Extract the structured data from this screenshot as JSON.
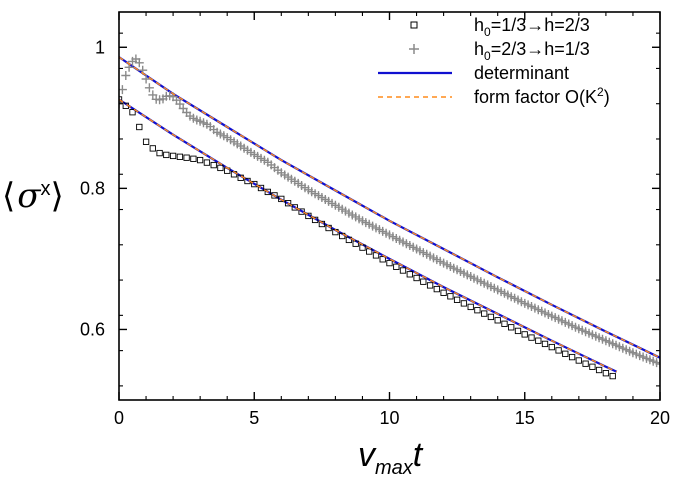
{
  "chart_data": {
    "type": "line",
    "title": "",
    "xlabel": {
      "main": "v",
      "sub": "max",
      "var": "t"
    },
    "ylabel": {
      "open": "⟨",
      "sym": "σ",
      "sup": "x",
      "close": "⟩"
    },
    "xlim": [
      0,
      20
    ],
    "ylim": [
      0.5,
      1.05
    ],
    "xticks": [
      0,
      5,
      10,
      15,
      20
    ],
    "xtick_labels": [
      "0",
      "5",
      "10",
      "15",
      "20"
    ],
    "yticks": [
      0.6,
      0.8,
      1.0
    ],
    "ytick_labels": [
      "0.6",
      "0.8",
      "1"
    ],
    "grid": false,
    "legend_position": "top-right",
    "legend": [
      {
        "id": "squares",
        "parts": [
          "h",
          "0",
          "=1/3→h=2/3"
        ],
        "marker": "square",
        "color": "#000000"
      },
      {
        "id": "plus",
        "parts": [
          "h",
          "0",
          "=2/3→h=1/3"
        ],
        "marker": "plus",
        "color": "#808080"
      },
      {
        "id": "det",
        "label": "determinant",
        "line": "solid",
        "color": "#1010d0"
      },
      {
        "id": "ff",
        "label": "form factor O(K",
        "sup": "2",
        "suffix": ")",
        "line": "dashed",
        "color": "#ff8c1a"
      }
    ],
    "series": [
      {
        "name": "h0=1/3→h=2/3",
        "marker": "square",
        "x": [
          0.0,
          0.5,
          1.0,
          1.4,
          1.8,
          2.2,
          2.6,
          3.0,
          3.5,
          4.0,
          4.5,
          5.0,
          5.5,
          6.0,
          7.0,
          8.0,
          9.0,
          10.0,
          11.0,
          12.0,
          13.0,
          14.0,
          15.0,
          16.0,
          17.0,
          18.0,
          18.3
        ],
        "y": [
          0.926,
          0.908,
          0.866,
          0.851,
          0.847,
          0.845,
          0.843,
          0.84,
          0.833,
          0.825,
          0.815,
          0.806,
          0.795,
          0.785,
          0.761,
          0.738,
          0.716,
          0.694,
          0.673,
          0.652,
          0.632,
          0.613,
          0.593,
          0.575,
          0.556,
          0.538,
          0.533
        ]
      },
      {
        "name": "h0=2/3→h=1/3",
        "marker": "plus",
        "x": [
          0.0,
          0.1,
          0.2,
          0.35,
          0.5,
          0.65,
          0.8,
          1.0,
          1.2,
          1.4,
          1.6,
          1.8,
          2.0,
          2.2,
          2.4,
          2.6,
          2.8,
          3.0,
          3.3,
          3.6,
          4.0,
          4.5,
          5.0,
          5.5,
          6.0,
          7.0,
          8.0,
          9.0,
          10.0,
          11.0,
          12.0,
          13.0,
          14.0,
          15.0,
          16.0,
          17.0,
          18.0,
          19.0,
          20.0
        ],
        "y": [
          0.92,
          0.935,
          0.955,
          0.97,
          0.98,
          0.984,
          0.975,
          0.955,
          0.935,
          0.925,
          0.926,
          0.932,
          0.93,
          0.922,
          0.912,
          0.903,
          0.898,
          0.895,
          0.89,
          0.88,
          0.872,
          0.86,
          0.848,
          0.837,
          0.822,
          0.798,
          0.776,
          0.754,
          0.734,
          0.714,
          0.694,
          0.675,
          0.656,
          0.637,
          0.619,
          0.601,
          0.584,
          0.567,
          0.551
        ]
      },
      {
        "name": "determinant (upper)",
        "line": "solid",
        "x": [
          0,
          2,
          4,
          6,
          8,
          10,
          12,
          14,
          16,
          18,
          20
        ],
        "y": [
          0.986,
          0.934,
          0.887,
          0.84,
          0.797,
          0.754,
          0.714,
          0.674,
          0.635,
          0.597,
          0.56
        ]
      },
      {
        "name": "determinant (lower)",
        "line": "solid",
        "x": [
          0,
          2,
          4,
          6,
          8,
          10,
          12,
          14,
          16,
          18,
          18.4
        ],
        "y": [
          0.926,
          0.876,
          0.829,
          0.784,
          0.741,
          0.7,
          0.66,
          0.622,
          0.584,
          0.547,
          0.54
        ]
      },
      {
        "name": "form factor (upper)",
        "line": "dashed",
        "x": [
          0,
          2,
          4,
          6,
          8,
          10,
          12,
          14,
          16,
          18,
          20
        ],
        "y": [
          0.986,
          0.934,
          0.887,
          0.84,
          0.797,
          0.754,
          0.714,
          0.674,
          0.635,
          0.597,
          0.56
        ]
      },
      {
        "name": "form factor (lower)",
        "line": "dashed",
        "x": [
          0,
          2,
          4,
          6,
          8,
          10,
          12,
          14,
          16,
          18,
          18.4
        ],
        "y": [
          0.926,
          0.876,
          0.829,
          0.784,
          0.741,
          0.7,
          0.66,
          0.622,
          0.584,
          0.547,
          0.54
        ]
      }
    ]
  }
}
